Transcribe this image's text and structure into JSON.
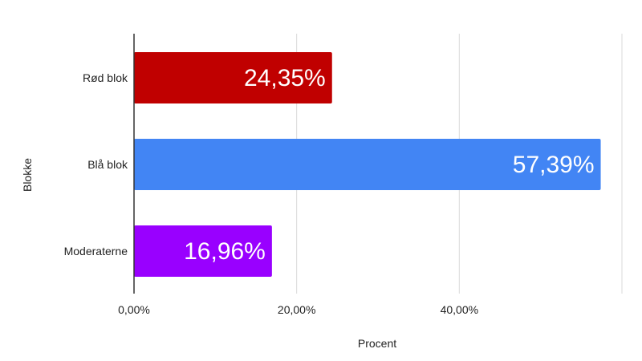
{
  "chart_data": {
    "type": "bar",
    "orientation": "horizontal",
    "categories": [
      "Rød blok",
      "Blå blok",
      "Moderaterne"
    ],
    "values": [
      24.35,
      57.39,
      16.96
    ],
    "data_labels": [
      "24,35%",
      "57,39%",
      "16,96%"
    ],
    "colors": [
      "#c00000",
      "#4285f4",
      "#9900ff"
    ],
    "xlabel": "Procent",
    "ylabel": "Blokke",
    "xlim": [
      0,
      60
    ],
    "x_ticks": [
      0,
      20,
      40
    ],
    "x_tick_labels": [
      "0,00%",
      "20,00%",
      "40,00%"
    ],
    "grid": true
  }
}
